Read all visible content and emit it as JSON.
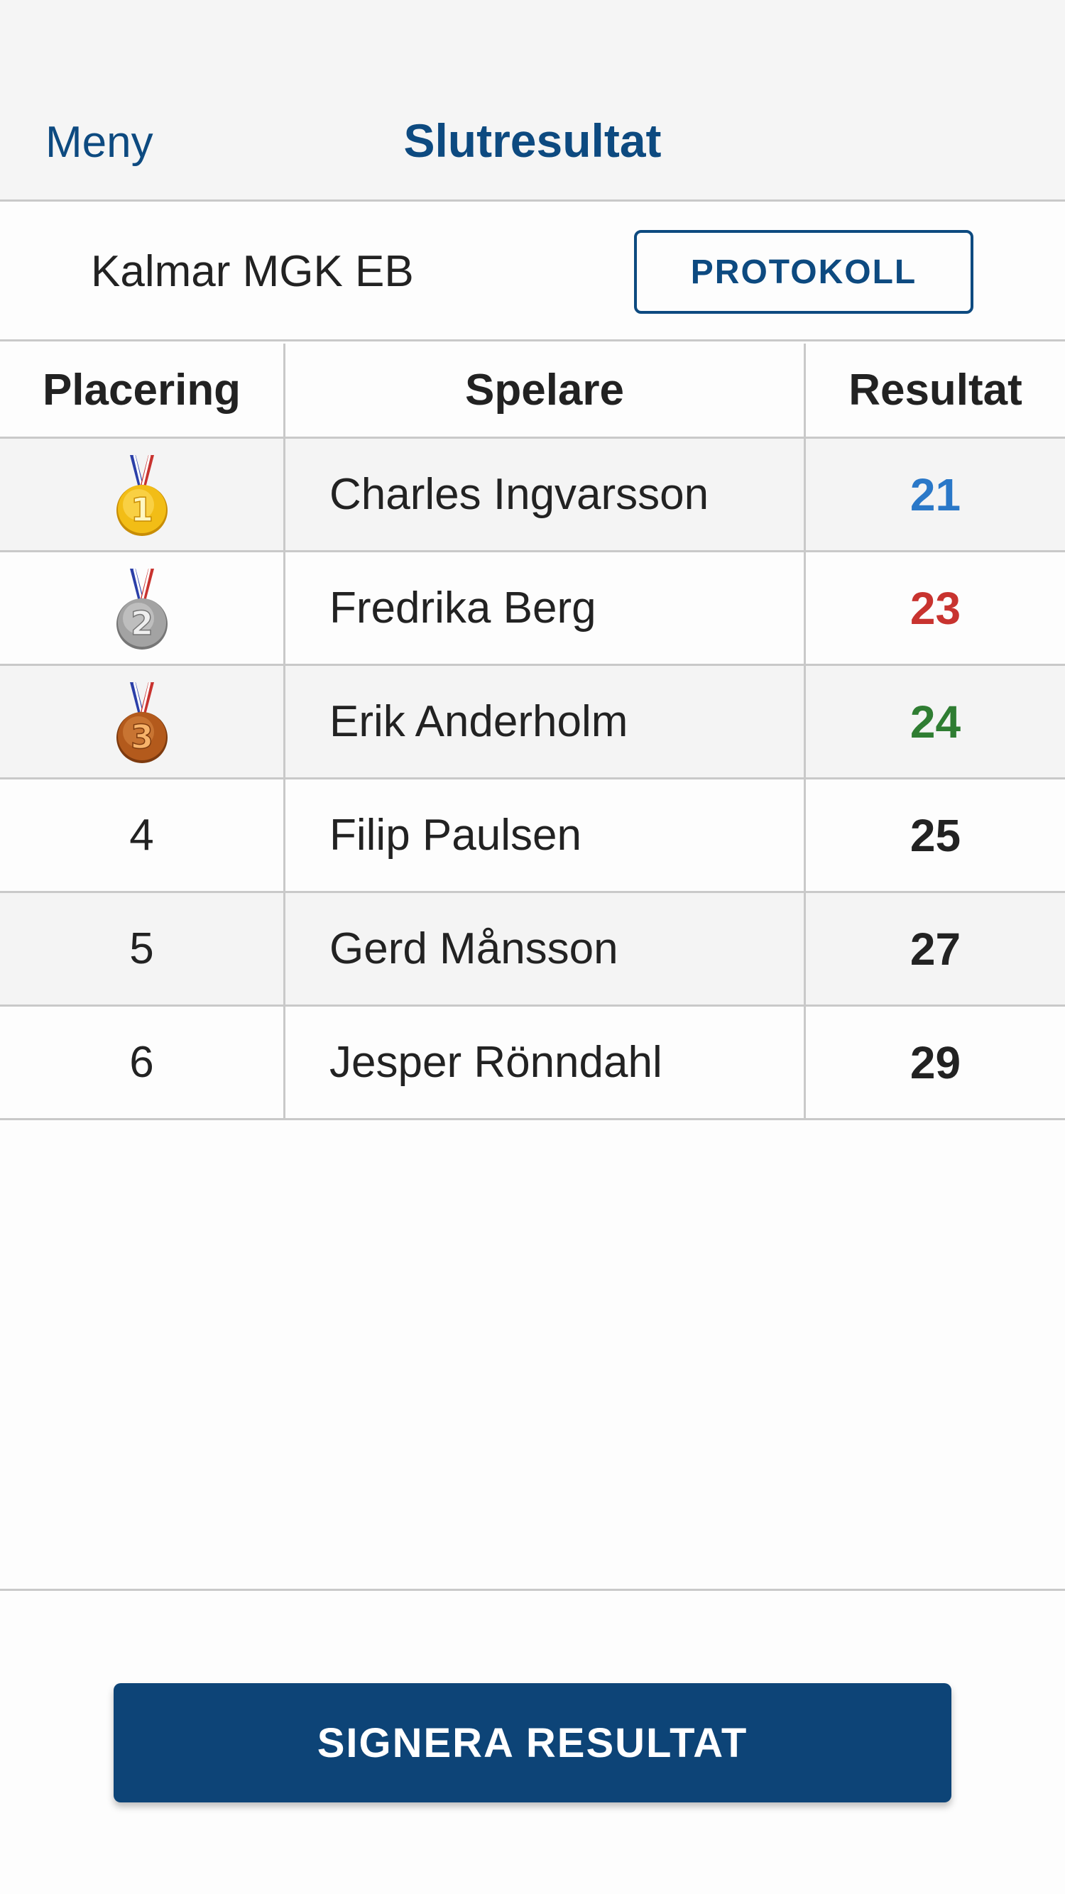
{
  "nav": {
    "back_label": "Meny",
    "title": "Slutresultat"
  },
  "club": {
    "name": "Kalmar MGK EB",
    "protocol_button": "PROTOKOLL"
  },
  "table": {
    "headers": {
      "placement": "Placering",
      "player": "Spelare",
      "result": "Resultat"
    },
    "rows": [
      {
        "placement": "1",
        "medal": "gold-medal-icon",
        "player": "Charles Ingvarsson",
        "result": "21",
        "result_color": "#2a78c8"
      },
      {
        "placement": "2",
        "medal": "silver-medal-icon",
        "player": "Fredrika Berg",
        "result": "23",
        "result_color": "#c8332f"
      },
      {
        "placement": "3",
        "medal": "bronze-medal-icon",
        "player": "Erik Anderholm",
        "result": "24",
        "result_color": "#2f7d32"
      },
      {
        "placement": "4",
        "medal": null,
        "player": "Filip Paulsen",
        "result": "25",
        "result_color": "#222222"
      },
      {
        "placement": "5",
        "medal": null,
        "player": "Gerd Månsson",
        "result": "27",
        "result_color": "#222222"
      },
      {
        "placement": "6",
        "medal": null,
        "player": "Jesper Rönndahl",
        "result": "29",
        "result_color": "#222222"
      }
    ]
  },
  "footer": {
    "sign_button": "SIGNERA RESULTAT"
  },
  "colors": {
    "accent": "#0d4a80",
    "primary_button": "#0d4477",
    "divider": "#c9c9c9"
  }
}
